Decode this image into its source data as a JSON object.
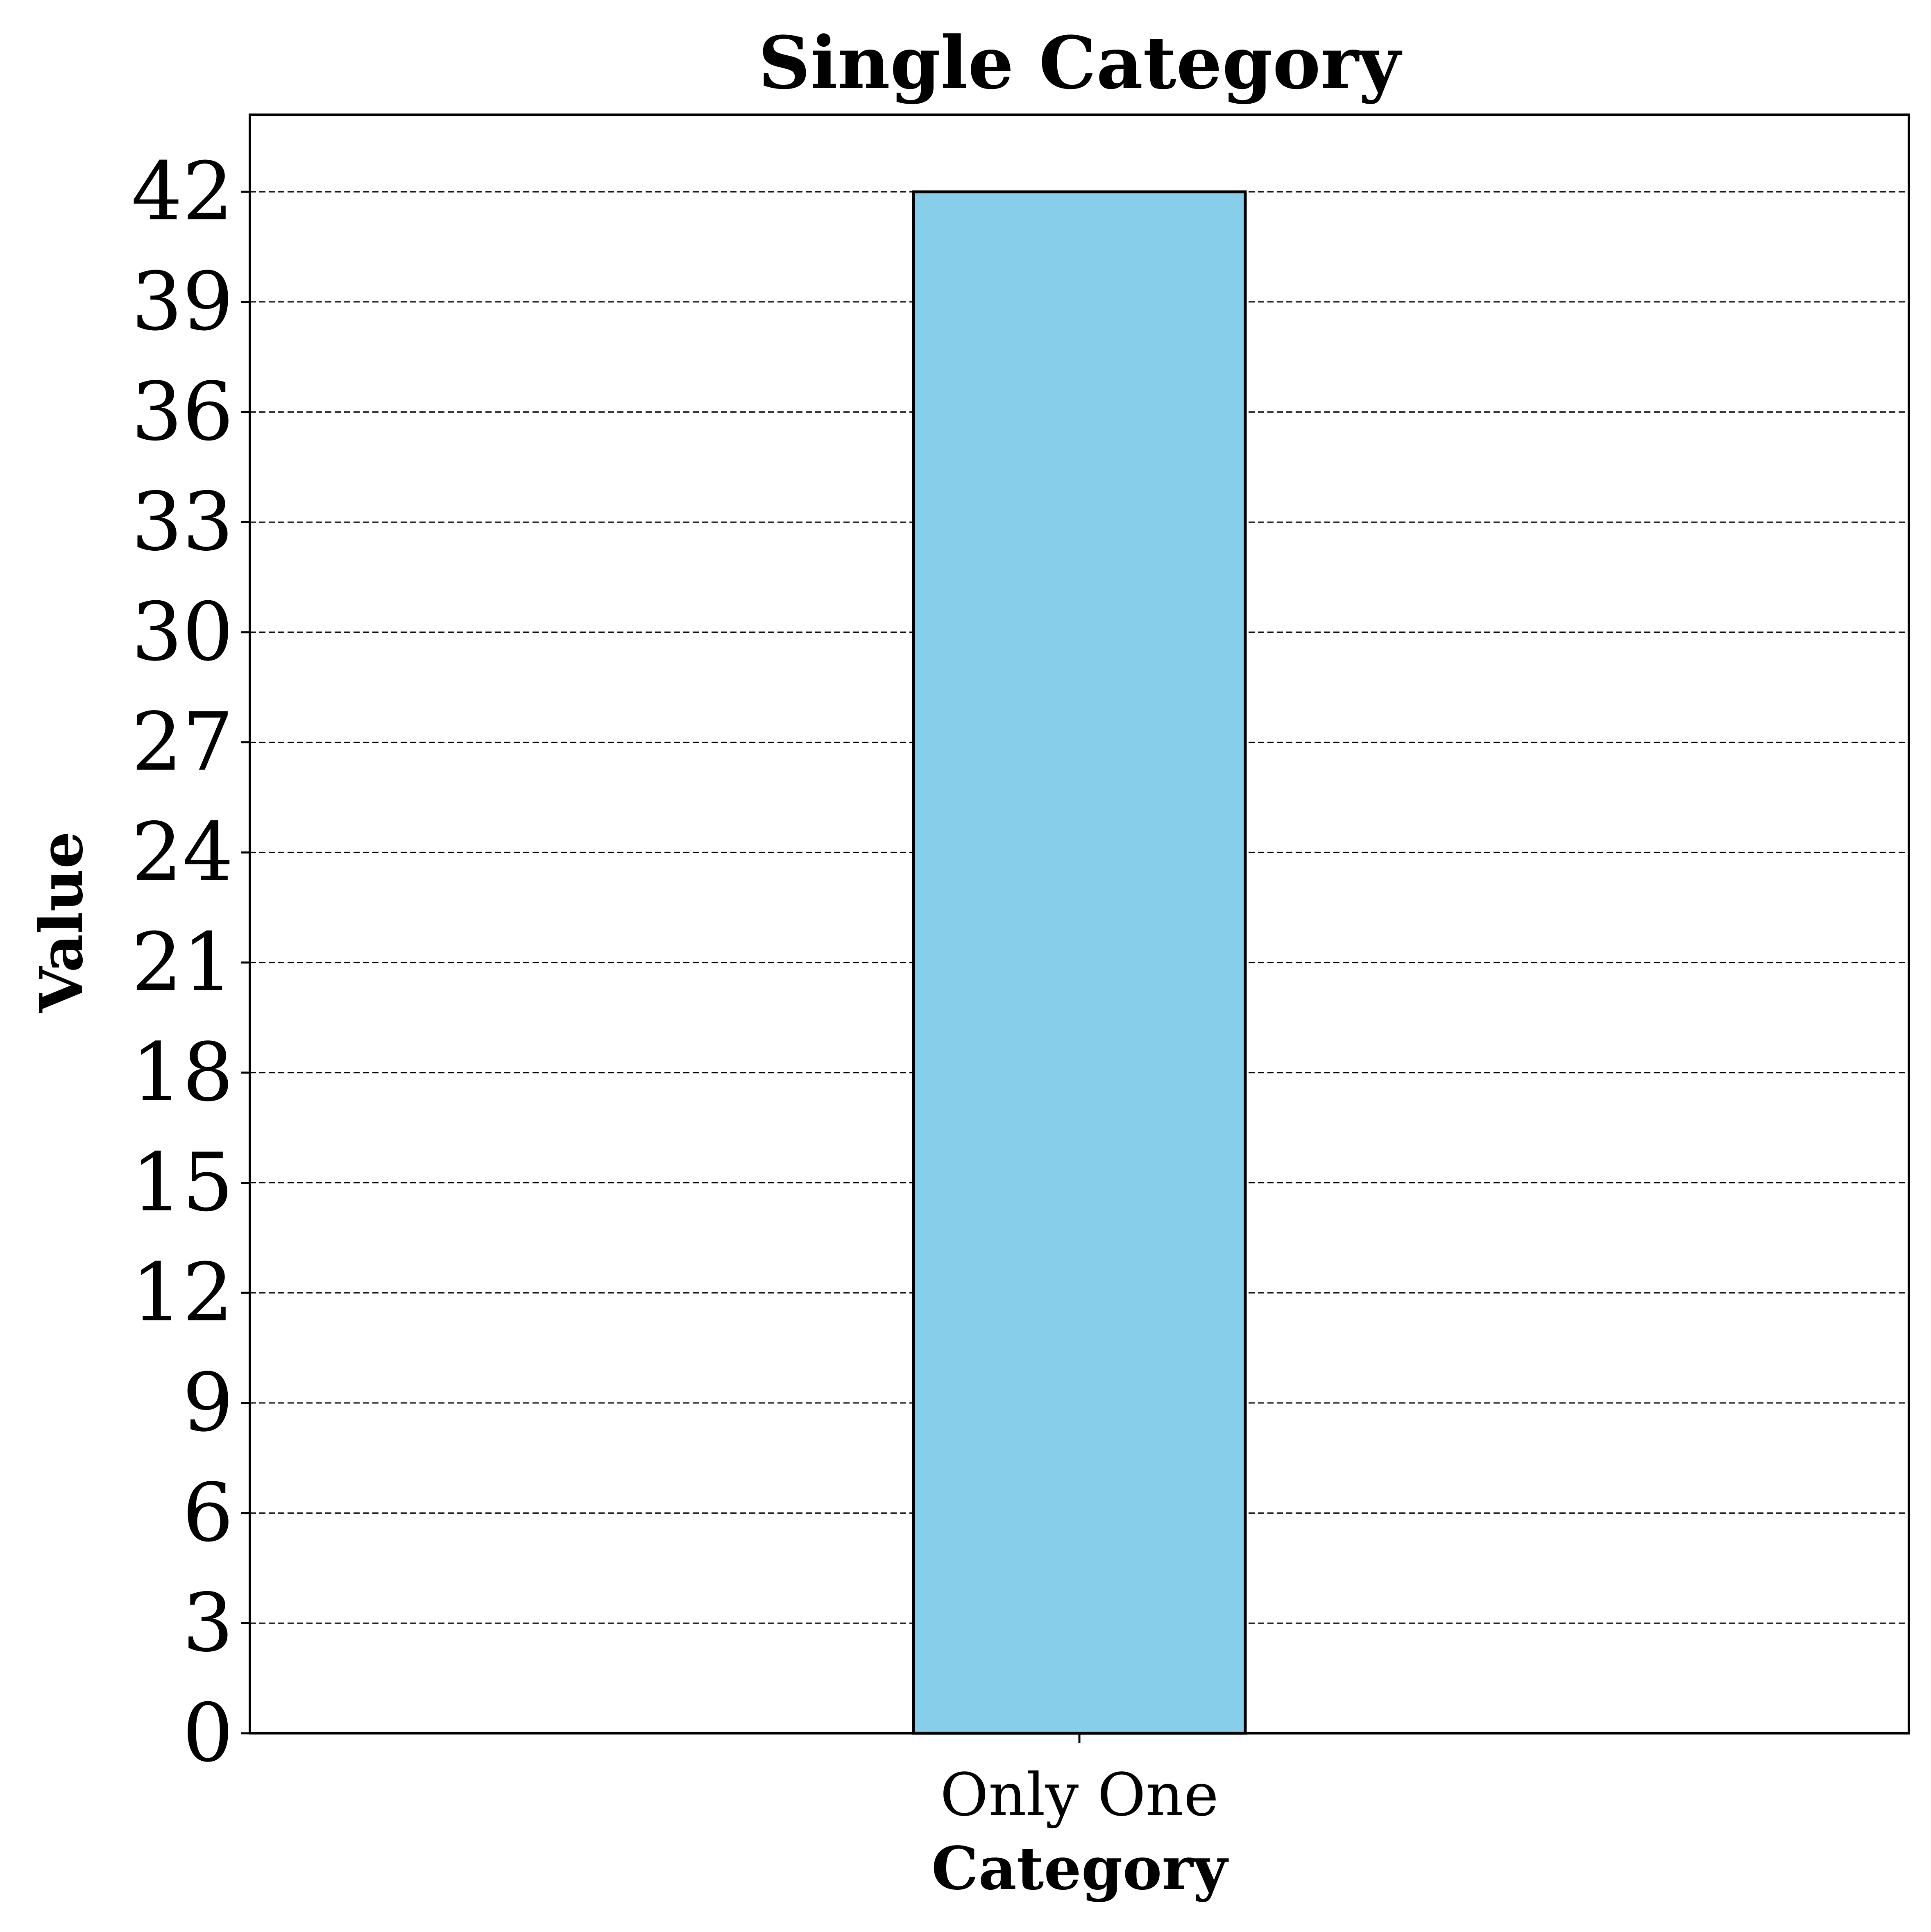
{
  "chart_data": {
    "type": "bar",
    "title": "Single Category",
    "xlabel": "Category",
    "ylabel": "Value",
    "categories": [
      "Only One"
    ],
    "values": [
      42
    ],
    "ylim": [
      0,
      44.1
    ],
    "yticks": [
      0,
      3,
      6,
      9,
      12,
      15,
      18,
      21,
      24,
      27,
      30,
      33,
      36,
      39,
      42
    ],
    "ytick_labels": [
      "0",
      "3",
      "6",
      "9",
      "12",
      "15",
      "18",
      "21",
      "24",
      "27",
      "30",
      "33",
      "36",
      "39",
      "42"
    ],
    "grid": {
      "axis": "y",
      "style": "dashed"
    },
    "legend": "none",
    "colors": {
      "bar_fill": "#87CEEB",
      "bar_edge": "#000000",
      "grid": "#000000",
      "axes": "#000000"
    }
  }
}
